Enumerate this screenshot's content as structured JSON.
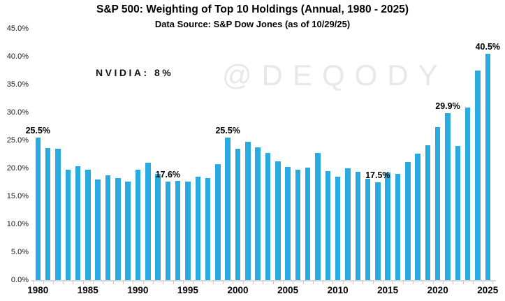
{
  "header": {
    "title": "S&P 500: Weighting of Top 10 Holdings (Annual, 1980 - 2025)",
    "subtitle": "Data Source: S&P Dow Jones (as of 10/29/25)"
  },
  "annotations": {
    "nvidia_label": "NVIDIA: 8%",
    "watermark": "@DEQODY"
  },
  "chart_data": {
    "type": "bar",
    "title": "S&P 500: Weighting of Top 10 Holdings (Annual, 1980 - 2025)",
    "subtitle": "Data Source: S&P Dow Jones (as of 10/29/25)",
    "xlabel": "",
    "ylabel": "",
    "ylim": [
      0,
      45
    ],
    "ytick_step": 5,
    "ytick_labels": [
      "0.0%",
      "5.0%",
      "10.0%",
      "15.0%",
      "20.0%",
      "25.0%",
      "30.0%",
      "35.0%",
      "40.0%",
      "45.0%"
    ],
    "xtick_labeled_years": [
      1980,
      1985,
      1990,
      1995,
      2000,
      2005,
      2010,
      2015,
      2020,
      2025
    ],
    "grid": false,
    "legend": false,
    "bar_color": "#29ABE2",
    "categories": [
      1980,
      1981,
      1982,
      1983,
      1984,
      1985,
      1986,
      1987,
      1988,
      1989,
      1990,
      1991,
      1992,
      1993,
      1994,
      1995,
      1996,
      1997,
      1998,
      1999,
      2000,
      2001,
      2002,
      2003,
      2004,
      2005,
      2006,
      2007,
      2008,
      2009,
      2010,
      2011,
      2012,
      2013,
      2014,
      2015,
      2016,
      2017,
      2018,
      2019,
      2020,
      2021,
      2022,
      2023,
      2024,
      2025
    ],
    "values": [
      25.5,
      23.6,
      23.5,
      19.7,
      20.4,
      19.7,
      18.0,
      18.8,
      18.3,
      17.6,
      19.8,
      21.0,
      19.0,
      17.6,
      17.8,
      17.6,
      18.5,
      18.3,
      20.7,
      25.5,
      23.5,
      24.8,
      23.8,
      22.7,
      21.3,
      20.2,
      19.8,
      20.1,
      22.8,
      19.5,
      18.5,
      20.0,
      19.4,
      18.1,
      17.5,
      19.2,
      19.0,
      21.1,
      22.6,
      24.1,
      27.4,
      29.9,
      24.0,
      30.9,
      37.5,
      40.5
    ],
    "point_labels": [
      {
        "year": 1980,
        "text": "25.5%"
      },
      {
        "year": 1993,
        "text": "17.6%"
      },
      {
        "year": 1999,
        "text": "25.5%"
      },
      {
        "year": 2014,
        "text": "17.5%"
      },
      {
        "year": 2021,
        "text": "29.9%"
      },
      {
        "year": 2025,
        "text": "40.5%"
      }
    ]
  }
}
